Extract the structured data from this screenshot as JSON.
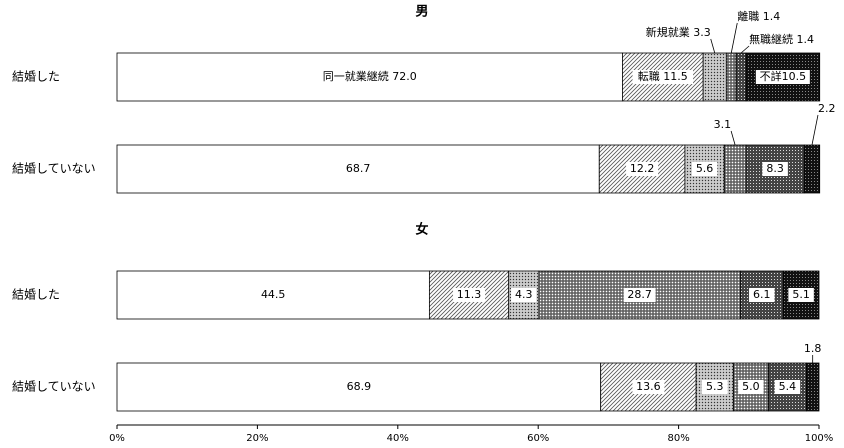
{
  "chart_data": {
    "type": "stacked-bar-h",
    "xlim": [
      0,
      100
    ],
    "xticks": [
      {
        "value": 0,
        "label": "0%"
      },
      {
        "value": 20,
        "label": "20%"
      },
      {
        "value": 40,
        "label": "40%"
      },
      {
        "value": 60,
        "label": "60%"
      },
      {
        "value": 80,
        "label": "80%"
      },
      {
        "value": 100,
        "label": "100%"
      }
    ],
    "panels": [
      {
        "title": "男",
        "categories": [
          "結婚した",
          "結婚していない"
        ],
        "series": [
          {
            "pattern": "white",
            "values": [
              72.0,
              68.7
            ],
            "value_labels": [
              "同一就業継続 72.0",
              "68.7"
            ]
          },
          {
            "pattern": "hatch",
            "values": [
              11.5,
              12.2
            ],
            "value_labels": [
              "転職 11.5",
              "12.2"
            ]
          },
          {
            "pattern": "dots-light",
            "values": [
              3.3,
              5.6
            ],
            "value_labels": [
              "新規就業 3.3",
              "5.6"
            ]
          },
          {
            "pattern": "cross",
            "values": [
              1.4,
              3.1
            ],
            "value_labels": [
              "離職 1.4",
              "3.1"
            ]
          },
          {
            "pattern": "dots-dark",
            "values": [
              1.4,
              8.3
            ],
            "value_labels": [
              "無職継続 1.4",
              "8.3"
            ]
          },
          {
            "pattern": "black",
            "values": [
              10.5,
              2.2
            ],
            "value_labels": [
              "不詳10.5",
              "2.2"
            ]
          }
        ]
      },
      {
        "title": "女",
        "categories": [
          "結婚した",
          "結婚していない"
        ],
        "series": [
          {
            "pattern": "white",
            "values": [
              44.5,
              68.9
            ],
            "value_labels": [
              "44.5",
              "68.9"
            ]
          },
          {
            "pattern": "hatch",
            "values": [
              11.3,
              13.6
            ],
            "value_labels": [
              "11.3",
              "13.6"
            ]
          },
          {
            "pattern": "dots-light",
            "values": [
              4.3,
              5.3
            ],
            "value_labels": [
              "4.3",
              "5.3"
            ]
          },
          {
            "pattern": "cross",
            "values": [
              28.7,
              5.0
            ],
            "value_labels": [
              "28.7",
              "5.0"
            ]
          },
          {
            "pattern": "dots-dark",
            "values": [
              6.1,
              5.4
            ],
            "value_labels": [
              "6.1",
              "5.4"
            ]
          },
          {
            "pattern": "black",
            "values": [
              5.1,
              1.8
            ],
            "value_labels": [
              "5.1",
              "1.8"
            ]
          }
        ]
      }
    ]
  }
}
